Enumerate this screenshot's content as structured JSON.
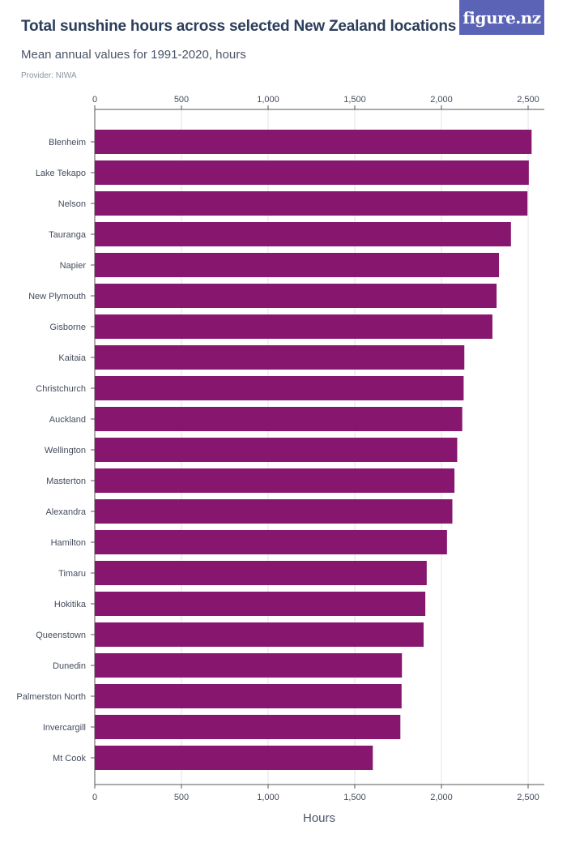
{
  "header": {
    "title": "Total sunshine hours across selected New Zealand locations",
    "subtitle": "Mean annual values for 1991-2020, hours",
    "provider": "Provider: NIWA",
    "logo": "figure.nz"
  },
  "colors": {
    "bar": "#86166e",
    "grid": "#e3e3e3",
    "axis": "#555555",
    "logo_bg": "#5a63b5"
  },
  "chart_data": {
    "type": "bar",
    "orientation": "horizontal",
    "title": "Total sunshine hours across selected New Zealand locations",
    "xlabel": "Hours",
    "ylabel": "",
    "xlim": [
      0,
      2500
    ],
    "ticks": [
      0,
      500,
      1000,
      1500,
      2000,
      2500
    ],
    "tick_labels": [
      "0",
      "500",
      "1,000",
      "1,500",
      "2,000",
      "2,500"
    ],
    "categories": [
      "Blenheim",
      "Lake Tekapo",
      "Nelson",
      "Tauranga",
      "Napier",
      "New Plymouth",
      "Gisborne",
      "Kaitaia",
      "Christchurch",
      "Auckland",
      "Wellington",
      "Masterton",
      "Alexandra",
      "Hamilton",
      "Timaru",
      "Hokitika",
      "Queenstown",
      "Dunedin",
      "Palmerston North",
      "Invercargill",
      "Mt Cook"
    ],
    "values": [
      2520,
      2504,
      2496,
      2401,
      2332,
      2318,
      2294,
      2132,
      2128,
      2120,
      2091,
      2075,
      2063,
      2032,
      1915,
      1907,
      1897,
      1772,
      1770,
      1763,
      1604
    ]
  }
}
